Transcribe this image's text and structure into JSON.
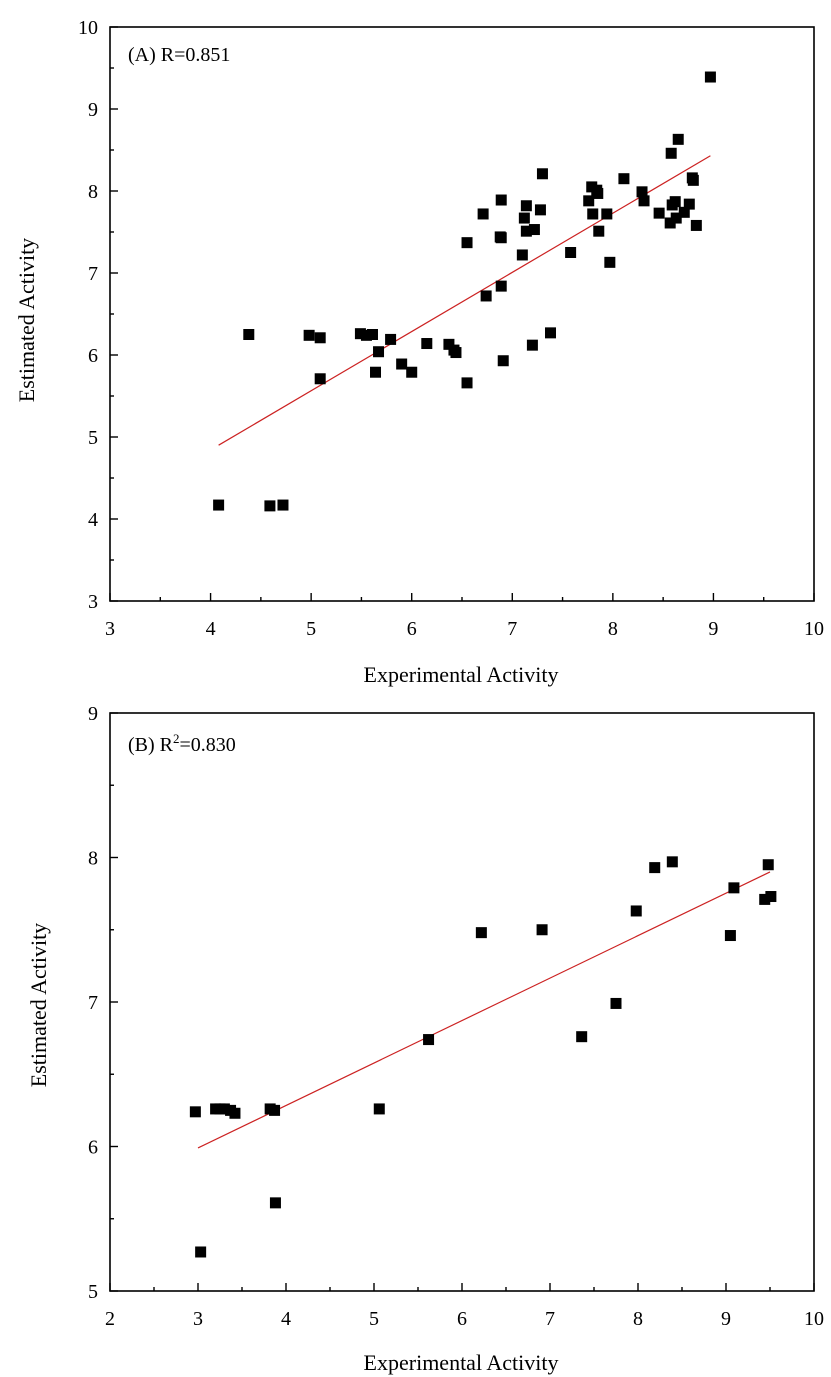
{
  "chart_data": [
    {
      "type": "scatter",
      "panel": "A",
      "annotation": "(A) R=0.851",
      "annotation_sup": "",
      "annotation_rest": "",
      "xlabel": "Experimental Activity",
      "ylabel": "Estimated Activity",
      "xlim": [
        3,
        10
      ],
      "ylim": [
        3,
        10
      ],
      "xticks": [
        3,
        4,
        5,
        6,
        7,
        8,
        9,
        10
      ],
      "yticks": [
        3,
        4,
        5,
        6,
        7,
        8,
        9,
        10
      ],
      "colors": {
        "points": "#000000",
        "fit_line": "#cc2222"
      },
      "fit_line": [
        [
          4.08,
          4.9
        ],
        [
          8.97,
          8.43
        ]
      ],
      "points": [
        [
          4.08,
          4.17
        ],
        [
          4.59,
          4.16
        ],
        [
          4.72,
          4.17
        ],
        [
          4.38,
          6.25
        ],
        [
          4.98,
          6.24
        ],
        [
          5.09,
          6.21
        ],
        [
          5.09,
          5.71
        ],
        [
          5.49,
          6.26
        ],
        [
          5.55,
          6.24
        ],
        [
          5.61,
          6.25
        ],
        [
          5.64,
          5.79
        ],
        [
          5.67,
          6.04
        ],
        [
          5.79,
          6.19
        ],
        [
          5.9,
          5.89
        ],
        [
          6.0,
          5.79
        ],
        [
          6.15,
          6.14
        ],
        [
          6.37,
          6.13
        ],
        [
          6.42,
          6.06
        ],
        [
          6.44,
          6.03
        ],
        [
          6.55,
          5.66
        ],
        [
          6.55,
          7.37
        ],
        [
          6.71,
          7.72
        ],
        [
          6.74,
          6.72
        ],
        [
          6.88,
          7.44
        ],
        [
          6.89,
          7.43
        ],
        [
          6.89,
          6.84
        ],
        [
          6.89,
          7.89
        ],
        [
          6.91,
          5.93
        ],
        [
          7.1,
          7.22
        ],
        [
          7.12,
          7.67
        ],
        [
          7.14,
          7.82
        ],
        [
          7.14,
          7.51
        ],
        [
          7.2,
          6.12
        ],
        [
          7.22,
          7.53
        ],
        [
          7.28,
          7.77
        ],
        [
          7.3,
          8.21
        ],
        [
          7.38,
          6.27
        ],
        [
          7.58,
          7.25
        ],
        [
          7.76,
          7.88
        ],
        [
          7.79,
          8.05
        ],
        [
          7.8,
          7.72
        ],
        [
          7.84,
          8.01
        ],
        [
          7.85,
          7.97
        ],
        [
          7.86,
          7.51
        ],
        [
          7.94,
          7.72
        ],
        [
          7.97,
          7.13
        ],
        [
          8.11,
          8.15
        ],
        [
          8.29,
          7.99
        ],
        [
          8.31,
          7.88
        ],
        [
          8.46,
          7.73
        ],
        [
          8.57,
          7.61
        ],
        [
          8.58,
          8.46
        ],
        [
          8.59,
          7.83
        ],
        [
          8.62,
          7.87
        ],
        [
          8.63,
          7.67
        ],
        [
          8.65,
          8.63
        ],
        [
          8.71,
          7.74
        ],
        [
          8.76,
          7.84
        ],
        [
          8.79,
          8.16
        ],
        [
          8.8,
          8.13
        ],
        [
          8.83,
          7.58
        ],
        [
          8.97,
          9.39
        ]
      ]
    },
    {
      "type": "scatter",
      "panel": "B",
      "annotation": "(B) R",
      "annotation_sup": "2",
      "annotation_rest": "=0.830",
      "xlabel": "Experimental Activity",
      "ylabel": "Estimated Activity",
      "xlim": [
        2,
        10
      ],
      "ylim": [
        5,
        9
      ],
      "xticks": [
        2,
        3,
        4,
        5,
        6,
        7,
        8,
        9,
        10
      ],
      "yticks": [
        5,
        6,
        7,
        8,
        9
      ],
      "colors": {
        "points": "#000000",
        "fit_line": "#cc2222"
      },
      "fit_line": [
        [
          3.0,
          5.99
        ],
        [
          9.5,
          7.9
        ]
      ],
      "points": [
        [
          2.97,
          6.24
        ],
        [
          3.03,
          5.27
        ],
        [
          3.2,
          6.26
        ],
        [
          3.25,
          6.26
        ],
        [
          3.3,
          6.26
        ],
        [
          3.37,
          6.25
        ],
        [
          3.42,
          6.23
        ],
        [
          3.82,
          6.26
        ],
        [
          3.87,
          6.25
        ],
        [
          3.88,
          5.61
        ],
        [
          5.06,
          6.26
        ],
        [
          5.62,
          6.74
        ],
        [
          6.22,
          7.48
        ],
        [
          6.91,
          7.5
        ],
        [
          7.36,
          6.76
        ],
        [
          7.75,
          6.99
        ],
        [
          7.98,
          7.63
        ],
        [
          8.19,
          7.93
        ],
        [
          8.39,
          7.97
        ],
        [
          9.05,
          7.46
        ],
        [
          9.09,
          7.79
        ],
        [
          9.44,
          7.71
        ],
        [
          9.48,
          7.95
        ],
        [
          9.51,
          7.73
        ]
      ]
    }
  ]
}
